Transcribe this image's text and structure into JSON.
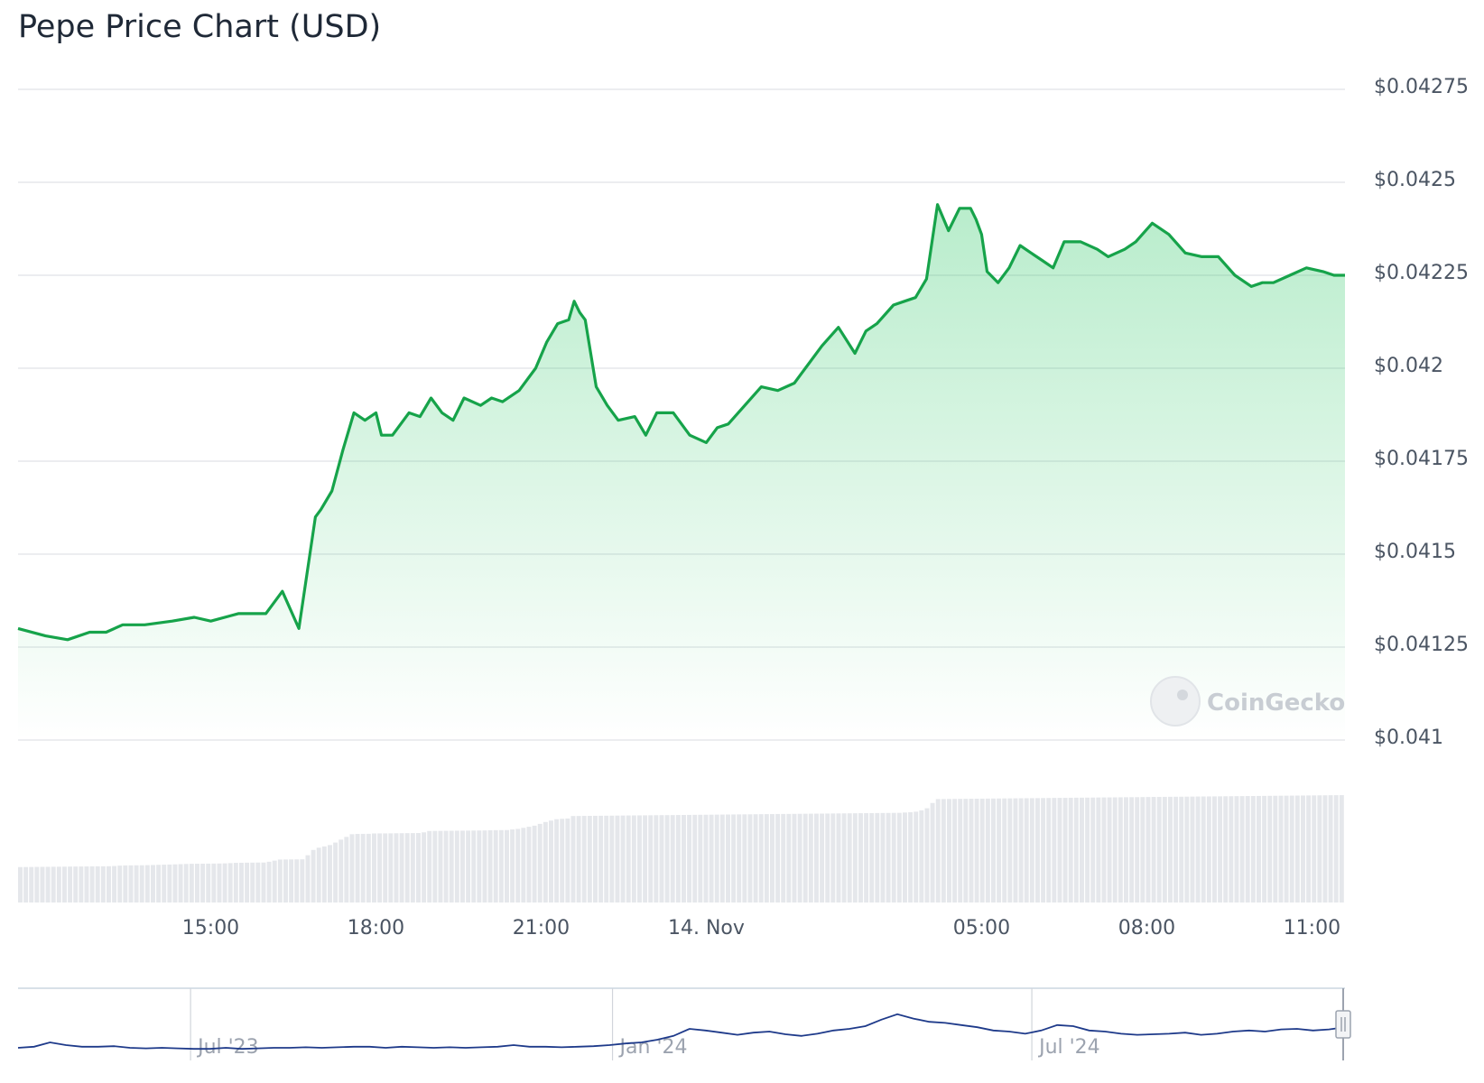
{
  "chart_data": {
    "type": "area",
    "title": "Pepe Price Chart (USD)",
    "watermark": "CoinGecko",
    "line_color": "#16a34a",
    "fill_color": "#22c55e",
    "volume_color": "#e5e7eb",
    "navigator_color": "#1e3a8a",
    "y_axis": {
      "position": "right",
      "ylim": [
        0.041,
        0.04275
      ],
      "ticks": [
        {
          "value": 0.04275,
          "label": "$0.04275"
        },
        {
          "value": 0.0425,
          "label": "$0.0425"
        },
        {
          "value": 0.04225,
          "label": "$0.04225"
        },
        {
          "value": 0.042,
          "label": "$0.042"
        },
        {
          "value": 0.04175,
          "label": "$0.04175"
        },
        {
          "value": 0.0415,
          "label": "$0.0415"
        },
        {
          "value": 0.04125,
          "label": "$0.04125"
        },
        {
          "value": 0.041,
          "label": "$0.041"
        }
      ]
    },
    "x_axis": {
      "xlim_hours": [
        11.5,
        35.6
      ],
      "ticks": [
        {
          "value": 15,
          "label": "15:00"
        },
        {
          "value": 18,
          "label": "18:00"
        },
        {
          "value": 21,
          "label": "21:00"
        },
        {
          "value": 24,
          "label": "14. Nov"
        },
        {
          "value": 29,
          "label": "05:00"
        },
        {
          "value": 32,
          "label": "08:00"
        },
        {
          "value": 35,
          "label": "11:00"
        }
      ]
    },
    "grid": true,
    "price_series": {
      "name": "Price",
      "x": [
        11.5,
        12.0,
        12.4,
        12.8,
        13.1,
        13.4,
        13.8,
        14.3,
        14.7,
        15.0,
        15.5,
        16.0,
        16.3,
        16.6,
        16.9,
        17.0,
        17.2,
        17.4,
        17.6,
        17.8,
        18.0,
        18.1,
        18.3,
        18.6,
        18.8,
        19.0,
        19.2,
        19.4,
        19.6,
        19.9,
        20.1,
        20.3,
        20.6,
        20.9,
        21.1,
        21.3,
        21.5,
        21.6,
        21.7,
        21.8,
        22.0,
        22.2,
        22.4,
        22.7,
        22.9,
        23.1,
        23.4,
        23.7,
        24.0,
        24.2,
        24.4,
        24.7,
        25.0,
        25.3,
        25.6,
        25.8,
        26.1,
        26.4,
        26.7,
        26.9,
        27.1,
        27.4,
        27.6,
        27.8,
        28.0,
        28.2,
        28.4,
        28.6,
        28.8,
        28.9,
        29.0,
        29.1,
        29.3,
        29.5,
        29.7,
        29.9,
        30.1,
        30.3,
        30.5,
        30.8,
        31.1,
        31.3,
        31.6,
        31.8,
        32.1,
        32.4,
        32.7,
        33.0,
        33.3,
        33.6,
        33.9,
        34.1,
        34.3,
        34.6,
        34.9,
        35.2,
        35.4,
        35.6
      ],
      "values": [
        0.0413,
        0.04128,
        0.04127,
        0.04129,
        0.04129,
        0.04131,
        0.04131,
        0.04132,
        0.04133,
        0.04132,
        0.04134,
        0.04134,
        0.0414,
        0.0413,
        0.0416,
        0.04162,
        0.04167,
        0.04178,
        0.04188,
        0.04186,
        0.04188,
        0.04182,
        0.04182,
        0.04188,
        0.04187,
        0.04192,
        0.04188,
        0.04186,
        0.04192,
        0.0419,
        0.04192,
        0.04191,
        0.04194,
        0.042,
        0.04207,
        0.04212,
        0.04213,
        0.04218,
        0.04215,
        0.04213,
        0.04195,
        0.0419,
        0.04186,
        0.04187,
        0.04182,
        0.04188,
        0.04188,
        0.04182,
        0.0418,
        0.04184,
        0.04185,
        0.0419,
        0.04195,
        0.04194,
        0.04196,
        0.042,
        0.04206,
        0.04211,
        0.04204,
        0.0421,
        0.04212,
        0.04217,
        0.04218,
        0.04219,
        0.04224,
        0.04244,
        0.04237,
        0.04243,
        0.04243,
        0.0424,
        0.04236,
        0.04226,
        0.04223,
        0.04227,
        0.04233,
        0.04231,
        0.04229,
        0.04227,
        0.04234,
        0.04234,
        0.04232,
        0.0423,
        0.04232,
        0.04234,
        0.04239,
        0.04236,
        0.04231,
        0.0423,
        0.0423,
        0.04225,
        0.04222,
        0.04223,
        0.04223,
        0.04225,
        0.04227,
        0.04226,
        0.04225,
        0.04225
      ]
    },
    "navigator": {
      "ticks": [
        {
          "position": 0.13,
          "label": "Jul '23"
        },
        {
          "position": 0.448,
          "label": "Jan '24"
        },
        {
          "position": 0.764,
          "label": "Jul '24"
        }
      ],
      "series": [
        0.2,
        0.22,
        0.3,
        0.25,
        0.22,
        0.22,
        0.23,
        0.2,
        0.19,
        0.2,
        0.19,
        0.18,
        0.18,
        0.2,
        0.18,
        0.19,
        0.2,
        0.2,
        0.21,
        0.2,
        0.21,
        0.22,
        0.22,
        0.2,
        0.22,
        0.21,
        0.2,
        0.21,
        0.2,
        0.21,
        0.22,
        0.25,
        0.22,
        0.22,
        0.21,
        0.22,
        0.23,
        0.25,
        0.28,
        0.3,
        0.35,
        0.42,
        0.55,
        0.52,
        0.48,
        0.44,
        0.48,
        0.5,
        0.45,
        0.42,
        0.46,
        0.52,
        0.55,
        0.6,
        0.72,
        0.82,
        0.74,
        0.68,
        0.66,
        0.62,
        0.58,
        0.52,
        0.5,
        0.46,
        0.52,
        0.62,
        0.6,
        0.52,
        0.5,
        0.46,
        0.44,
        0.45,
        0.46,
        0.48,
        0.44,
        0.46,
        0.5,
        0.52,
        0.5,
        0.54,
        0.55,
        0.52,
        0.54,
        0.58
      ]
    }
  }
}
